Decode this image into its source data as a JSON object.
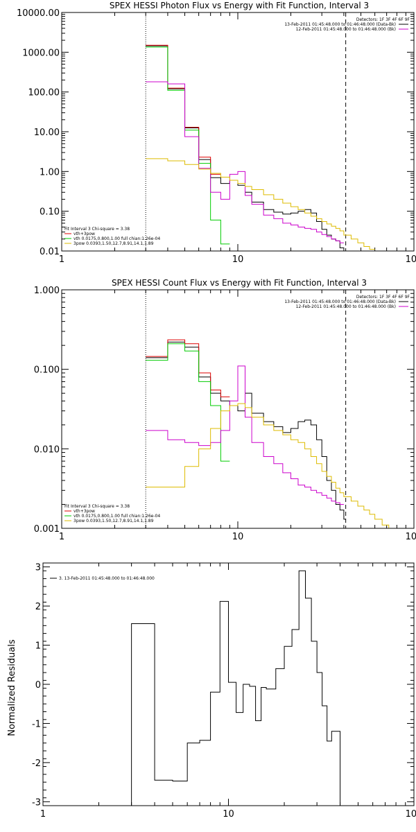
{
  "chart_data": [
    {
      "type": "line",
      "title": "SPEX HESSI Photon Flux vs Energy with Fit Function, Interval 3",
      "xlabel": "",
      "ylabel": "",
      "xscale": "log",
      "yscale": "log",
      "xlim": [
        1,
        100
      ],
      "ylim": [
        0.01,
        10000
      ],
      "x_ticks": [
        1,
        10,
        100
      ],
      "x_tick_labels": [
        "1",
        "10",
        "100"
      ],
      "y_ticks": [
        0.01,
        0.1,
        1,
        10,
        100,
        1000,
        10000
      ],
      "y_tick_labels": [
        "0.01",
        "0.10",
        "1.00",
        "10.00",
        "100.00",
        "1000.00",
        "10000.00"
      ],
      "vlines": [
        {
          "x": 3.0,
          "style": "dotted",
          "color": "#000000"
        },
        {
          "x": 41.0,
          "style": "dashed",
          "color": "#000000"
        }
      ],
      "legend_topright": {
        "position": "top-right",
        "lines": [
          {
            "text": "Detectors: 1F 3F 4F 6F 9F",
            "color": ""
          },
          {
            "text": "13-Feb-2011 01:45:48.000 to 01:46:48.000 (Data-Bk)",
            "color": "#000000"
          },
          {
            "text": "12-Feb-2011 01:45:48.000 to 01:46:48.000 (Bk)",
            "color": "#cc00cc"
          }
        ]
      },
      "legend_bottomleft": {
        "position": "bottom-left",
        "lines": [
          {
            "text": "Fit Interval 3   Chi-square = 3.38",
            "color": ""
          },
          {
            "text": "vth+3pow",
            "color": "#dd0000"
          },
          {
            "text": "vth 0.0175,0.800,1.00  full chian:1.26e-04",
            "color": "#00cc00"
          },
          {
            "text": "3pow 0.0393,1.50,12.7,8.91,14.1,1.89",
            "color": "#ddbb00"
          }
        ]
      },
      "series": [
        {
          "color": "#000000",
          "edges": [
            3,
            4,
            5,
            6,
            7,
            8,
            9,
            10,
            11,
            12,
            14,
            16,
            18,
            20,
            22,
            24,
            26,
            28,
            30,
            32,
            34,
            36,
            38,
            40
          ],
          "values": [
            1450,
            120,
            12.5,
            2.0,
            0.7,
            0.5,
            0.6,
            0.45,
            0.3,
            0.17,
            0.11,
            0.095,
            0.085,
            0.09,
            0.1,
            0.11,
            0.09,
            0.055,
            0.035,
            0.025,
            0.02,
            0.018,
            0.012
          ]
        },
        {
          "color": "#dd0000",
          "edges": [
            3,
            4,
            5,
            6,
            7,
            8
          ],
          "values": [
            1500,
            125,
            13,
            2.3,
            0.85
          ]
        },
        {
          "color": "#00cc00",
          "edges": [
            3,
            4,
            5,
            6,
            7,
            8,
            9
          ],
          "values": [
            1350,
            110,
            11,
            1.6,
            0.06,
            0.015
          ]
        },
        {
          "color": "#cc00cc",
          "edges": [
            3,
            4,
            5,
            6,
            7,
            8,
            9,
            10,
            11,
            12,
            14,
            16,
            18,
            20,
            22,
            24,
            26,
            28,
            30,
            32,
            34,
            36,
            38,
            40
          ],
          "values": [
            180,
            160,
            7.5,
            1.2,
            0.3,
            0.2,
            0.85,
            1.0,
            0.25,
            0.15,
            0.08,
            0.065,
            0.05,
            0.045,
            0.04,
            0.037,
            0.035,
            0.03,
            0.026,
            0.023,
            0.02,
            0.018,
            0.016
          ]
        },
        {
          "color": "#ddbb00",
          "edges": [
            3,
            4,
            5,
            6,
            7,
            8,
            9,
            10,
            11,
            12,
            14,
            16,
            18,
            20,
            22,
            24,
            26,
            28,
            30,
            32,
            34,
            36,
            38,
            40,
            44,
            48,
            52,
            56,
            60
          ],
          "values": [
            2.1,
            1.85,
            1.5,
            1.15,
            0.9,
            0.72,
            0.6,
            0.5,
            0.42,
            0.35,
            0.26,
            0.2,
            0.16,
            0.13,
            0.11,
            0.09,
            0.075,
            0.065,
            0.055,
            0.048,
            0.042,
            0.037,
            0.032,
            0.025,
            0.02,
            0.016,
            0.013,
            0.011
          ]
        }
      ]
    },
    {
      "type": "line",
      "title": "SPEX HESSI Count Flux vs Energy with Fit Function, Interval 3",
      "xlabel": "",
      "ylabel": "",
      "xscale": "log",
      "yscale": "log",
      "xlim": [
        1,
        100
      ],
      "ylim": [
        0.001,
        1
      ],
      "x_ticks": [
        1,
        10,
        100
      ],
      "x_tick_labels": [
        "1",
        "10",
        "100"
      ],
      "y_ticks": [
        0.001,
        0.01,
        0.1,
        1
      ],
      "y_tick_labels": [
        "0.001",
        "0.010",
        "0.100",
        "1.000"
      ],
      "vlines": [
        {
          "x": 3.0,
          "style": "dotted",
          "color": "#000000"
        },
        {
          "x": 41.0,
          "style": "dashed",
          "color": "#000000"
        }
      ],
      "legend_topright": {
        "position": "top-right",
        "lines": [
          {
            "text": "Detectors: 1F 3F 4F 6F 9F",
            "color": ""
          },
          {
            "text": "13-Feb-2011 01:45:48.000 to 01:46:48.000 (Data-Bk)",
            "color": "#000000"
          },
          {
            "text": "12-Feb-2011 01:45:48.000 to 01:46:48.000 (Bk)",
            "color": "#cc00cc"
          }
        ]
      },
      "legend_bottomleft": {
        "position": "bottom-left",
        "lines": [
          {
            "text": "Fit Interval 3   Chi-square = 3.38",
            "color": ""
          },
          {
            "text": "vth+3pow",
            "color": "#dd0000"
          },
          {
            "text": "vth 0.0175,0.800,1.00  full chian:1.26e-04",
            "color": "#00cc00"
          },
          {
            "text": "3pow 0.0393,1.50,12.7,8.91,14.1,1.89",
            "color": "#ddbb00"
          }
        ]
      },
      "series": [
        {
          "color": "#000000",
          "edges": [
            3,
            4,
            5,
            6,
            7,
            8,
            9,
            10,
            11,
            12,
            14,
            16,
            18,
            20,
            22,
            24,
            26,
            28,
            30,
            32,
            34,
            36,
            38,
            40,
            41
          ],
          "values": [
            0.14,
            0.22,
            0.19,
            0.08,
            0.05,
            0.04,
            0.035,
            0.03,
            0.05,
            0.028,
            0.022,
            0.019,
            0.016,
            0.018,
            0.022,
            0.023,
            0.02,
            0.013,
            0.008,
            0.004,
            0.003,
            0.002,
            0.0017,
            0.0013
          ]
        },
        {
          "color": "#dd0000",
          "edges": [
            3,
            4,
            5,
            6,
            7,
            8,
            9
          ],
          "values": [
            0.145,
            0.235,
            0.21,
            0.09,
            0.055,
            0.045
          ]
        },
        {
          "color": "#00cc00",
          "edges": [
            3,
            4,
            5,
            6,
            7,
            8,
            9
          ],
          "values": [
            0.13,
            0.21,
            0.17,
            0.07,
            0.035,
            0.007
          ]
        },
        {
          "color": "#cc00cc",
          "edges": [
            3,
            4,
            5,
            6,
            7,
            8,
            9,
            10,
            11,
            12,
            14,
            16,
            18,
            20,
            22,
            24,
            26,
            28,
            30,
            32,
            34,
            36,
            38,
            40
          ],
          "values": [
            0.017,
            0.013,
            0.012,
            0.011,
            0.012,
            0.017,
            0.04,
            0.11,
            0.025,
            0.012,
            0.008,
            0.0065,
            0.005,
            0.0042,
            0.0035,
            0.0033,
            0.003,
            0.0028,
            0.0026,
            0.0024,
            0.0022,
            0.0021,
            0.002
          ]
        },
        {
          "color": "#ddbb00",
          "edges": [
            3,
            4,
            5,
            6,
            7,
            8,
            9,
            10,
            11,
            12,
            14,
            16,
            18,
            20,
            22,
            24,
            26,
            28,
            30,
            32,
            34,
            36,
            38,
            40,
            44,
            48,
            52,
            56,
            60,
            66,
            72,
            78
          ],
          "values": [
            0.0033,
            0.0033,
            0.006,
            0.01,
            0.018,
            0.03,
            0.035,
            0.037,
            0.033,
            0.025,
            0.02,
            0.017,
            0.015,
            0.013,
            0.012,
            0.01,
            0.008,
            0.0065,
            0.0052,
            0.0045,
            0.0038,
            0.0032,
            0.0028,
            0.0025,
            0.0022,
            0.0019,
            0.0017,
            0.0015,
            0.0013,
            0.0011,
            0.001
          ]
        }
      ]
    },
    {
      "type": "line",
      "title": "",
      "xlabel": "",
      "ylabel": "Normalized Residuals",
      "xscale": "log",
      "yscale": "linear",
      "xlim": [
        1,
        100
      ],
      "ylim": [
        -3.1,
        3.1
      ],
      "x_ticks": [
        1,
        10,
        100
      ],
      "x_tick_labels": [
        "1",
        "10",
        "100"
      ],
      "y_ticks": [
        -3,
        -2,
        -1,
        0,
        1,
        2,
        3
      ],
      "y_tick_labels": [
        "-3",
        "-2",
        "-1",
        "0",
        "1",
        "2",
        "3"
      ],
      "vlines": [],
      "legend_topright": {
        "position": "top-right",
        "lines": []
      },
      "legend_bottomleft": {
        "position": "bottom-left",
        "lines": []
      },
      "legend_topleft": {
        "position": "top-left",
        "lines": [
          {
            "text": "3. 13-Feb-2011 01:45:48.000 to 01:46:48.000",
            "color": "#000000"
          }
        ]
      },
      "series": [
        {
          "color": "#000000",
          "drop_to_bottom": true,
          "edges": [
            3,
            4,
            5,
            6,
            7,
            8,
            9,
            10,
            11,
            12,
            13,
            14,
            15,
            16,
            18,
            20,
            22,
            24,
            26,
            28,
            30,
            32,
            34,
            36,
            38,
            40
          ],
          "values": [
            1.55,
            -2.45,
            -2.47,
            -1.5,
            -1.43,
            -0.2,
            2.12,
            0.05,
            -0.72,
            0.0,
            -0.05,
            -0.93,
            -0.08,
            -0.12,
            0.4,
            0.97,
            1.4,
            2.9,
            2.2,
            1.1,
            0.3,
            -0.55,
            -1.45,
            -1.2,
            -1.2
          ]
        }
      ]
    }
  ]
}
